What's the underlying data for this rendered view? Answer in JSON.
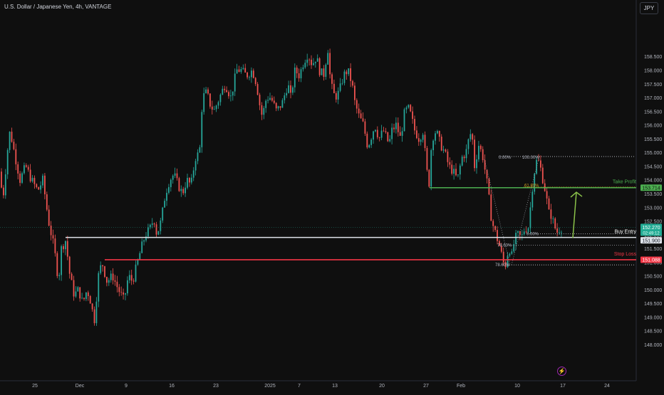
{
  "header": {
    "symbol_title": "U.S. Dollar / Japanese Yen, 4h, VANTAGE",
    "currency_button": "JPY"
  },
  "colors": {
    "background": "#0f0f0f",
    "up_candle": "#26a69a",
    "down_candle": "#ef5350",
    "take_profit": "#4caf50",
    "stop_loss": "#f23645",
    "buy_entry": "#dfe3ea",
    "fib": "#9598a1",
    "arrow": "#8bc34a",
    "last_price_bg": "#22ab94"
  },
  "chart_data": {
    "type": "candlestick",
    "symbol": "U.S. Dollar / Japanese Yen",
    "timeframe": "4h",
    "source": "VANTAGE",
    "y_axis": {
      "range": [
        148.0,
        159.0
      ],
      "ticks": [
        "158.500",
        "158.000",
        "157.500",
        "157.000",
        "156.500",
        "156.000",
        "155.500",
        "155.000",
        "154.500",
        "154.000",
        "153.500",
        "153.000",
        "152.500",
        "152.000",
        "151.500",
        "151.000",
        "150.500",
        "150.000",
        "149.500",
        "149.000",
        "148.500",
        "148.000"
      ]
    },
    "x_axis": {
      "ticks": [
        {
          "label": "25",
          "x": 49
        },
        {
          "label": "Dec",
          "x": 112
        },
        {
          "label": "9",
          "x": 177
        },
        {
          "label": "16",
          "x": 241
        },
        {
          "label": "23",
          "x": 303
        },
        {
          "label": "2025",
          "x": 379
        },
        {
          "label": "7",
          "x": 420
        },
        {
          "label": "13",
          "x": 470
        },
        {
          "label": "20",
          "x": 536
        },
        {
          "label": "27",
          "x": 598
        },
        {
          "label": "Feb",
          "x": 647
        },
        {
          "label": "10",
          "x": 726
        },
        {
          "label": "17",
          "x": 790
        },
        {
          "label": "24",
          "x": 852
        }
      ]
    },
    "price_path": [
      [
        0,
        154.5
      ],
      [
        6,
        153.3
      ],
      [
        12,
        155.0
      ],
      [
        16,
        155.8
      ],
      [
        22,
        155.0
      ],
      [
        30,
        154.0
      ],
      [
        38,
        154.5
      ],
      [
        46,
        154.0
      ],
      [
        55,
        153.6
      ],
      [
        62,
        154.0
      ],
      [
        70,
        152.5
      ],
      [
        78,
        151.5
      ],
      [
        84,
        150.3
      ],
      [
        88,
        151.5
      ],
      [
        94,
        151.8
      ],
      [
        100,
        150.5
      ],
      [
        106,
        149.8
      ],
      [
        112,
        150.0
      ],
      [
        118,
        149.5
      ],
      [
        124,
        150.0
      ],
      [
        130,
        149.5
      ],
      [
        134,
        148.8
      ],
      [
        140,
        150.5
      ],
      [
        145,
        151.0
      ],
      [
        152,
        150.3
      ],
      [
        160,
        150.5
      ],
      [
        168,
        150.0
      ],
      [
        176,
        149.6
      ],
      [
        182,
        150.5
      ],
      [
        188,
        150.3
      ],
      [
        195,
        151.0
      ],
      [
        200,
        151.5
      ],
      [
        206,
        152.0
      ],
      [
        212,
        152.2
      ],
      [
        218,
        152.6
      ],
      [
        222,
        152.0
      ],
      [
        228,
        152.5
      ],
      [
        234,
        153.5
      ],
      [
        240,
        154.0
      ],
      [
        246,
        154.2
      ],
      [
        252,
        153.8
      ],
      [
        258,
        153.5
      ],
      [
        264,
        154.0
      ],
      [
        270,
        153.8
      ],
      [
        276,
        154.8
      ],
      [
        282,
        155.0
      ],
      [
        286,
        157.0
      ],
      [
        292,
        157.2
      ],
      [
        296,
        156.8
      ],
      [
        302,
        156.5
      ],
      [
        310,
        157.0
      ],
      [
        318,
        157.5
      ],
      [
        326,
        157.0
      ],
      [
        334,
        158.0
      ],
      [
        340,
        158.0
      ],
      [
        348,
        157.8
      ],
      [
        356,
        158.0
      ],
      [
        362,
        157.5
      ],
      [
        366,
        156.8
      ],
      [
        370,
        156.3
      ],
      [
        376,
        157.0
      ],
      [
        382,
        157.0
      ],
      [
        390,
        156.5
      ],
      [
        398,
        156.8
      ],
      [
        406,
        157.5
      ],
      [
        410,
        157.0
      ],
      [
        416,
        158.0
      ],
      [
        422,
        157.8
      ],
      [
        428,
        158.3
      ],
      [
        434,
        158.6
      ],
      [
        440,
        158.2
      ],
      [
        446,
        158.5
      ],
      [
        450,
        158.0
      ],
      [
        456,
        157.8
      ],
      [
        462,
        158.8
      ],
      [
        466,
        157.5
      ],
      [
        472,
        157.0
      ],
      [
        478,
        157.2
      ],
      [
        484,
        157.8
      ],
      [
        490,
        158.0
      ],
      [
        496,
        157.5
      ],
      [
        500,
        156.8
      ],
      [
        506,
        156.3
      ],
      [
        512,
        156.0
      ],
      [
        518,
        155.2
      ],
      [
        522,
        155.5
      ],
      [
        528,
        156.0
      ],
      [
        534,
        155.5
      ],
      [
        540,
        155.8
      ],
      [
        548,
        155.3
      ],
      [
        552,
        155.8
      ],
      [
        558,
        156.0
      ],
      [
        564,
        155.5
      ],
      [
        570,
        156.5
      ],
      [
        576,
        156.6
      ],
      [
        580,
        156.2
      ],
      [
        584,
        155.8
      ],
      [
        590,
        155.5
      ],
      [
        596,
        155.8
      ],
      [
        600,
        154.5
      ],
      [
        604,
        153.8
      ],
      [
        608,
        155.5
      ],
      [
        614,
        155.8
      ],
      [
        620,
        155.3
      ],
      [
        626,
        155.0
      ],
      [
        632,
        154.5
      ],
      [
        638,
        154.3
      ],
      [
        644,
        154.0
      ],
      [
        650,
        154.8
      ],
      [
        656,
        155.0
      ],
      [
        660,
        155.5
      ],
      [
        664,
        155.8
      ],
      [
        668,
        154.5
      ],
      [
        674,
        155.3
      ],
      [
        680,
        154.8
      ],
      [
        686,
        153.8
      ],
      [
        692,
        152.5
      ],
      [
        698,
        152.0
      ],
      [
        704,
        151.5
      ],
      [
        708,
        151.0
      ],
      [
        712,
        150.9
      ],
      [
        716,
        151.6
      ],
      [
        720,
        151.2
      ],
      [
        724,
        151.8
      ],
      [
        728,
        152.0
      ],
      [
        734,
        151.9
      ],
      [
        738,
        152.2
      ],
      [
        744,
        152.3
      ],
      [
        748,
        153.5
      ],
      [
        752,
        154.3
      ],
      [
        756,
        154.8
      ],
      [
        760,
        154.5
      ],
      [
        764,
        154.0
      ],
      [
        768,
        153.5
      ],
      [
        772,
        152.8
      ],
      [
        776,
        152.7
      ],
      [
        780,
        152.3
      ],
      [
        784,
        152.1
      ],
      [
        788,
        152.27
      ]
    ]
  },
  "last_price": {
    "value": "152.270",
    "countdown": "02:49:12"
  },
  "levels": {
    "take_profit": {
      "label": "Take Profit",
      "value": "153.714"
    },
    "buy_entry": {
      "label": "Buy Entry",
      "value": "151.900"
    },
    "stop_loss": {
      "label": "Stop Loss",
      "value": "151.088"
    }
  },
  "fibonacci": {
    "top_left": "0.00%",
    "top_right": "100.00%",
    "fib_618": "61.80%",
    "fib_0": "0.00%",
    "fib_786": "78.60%",
    "fib_bottom": "78.60%"
  },
  "icons": {
    "alert_bolt": "lightning-icon"
  }
}
